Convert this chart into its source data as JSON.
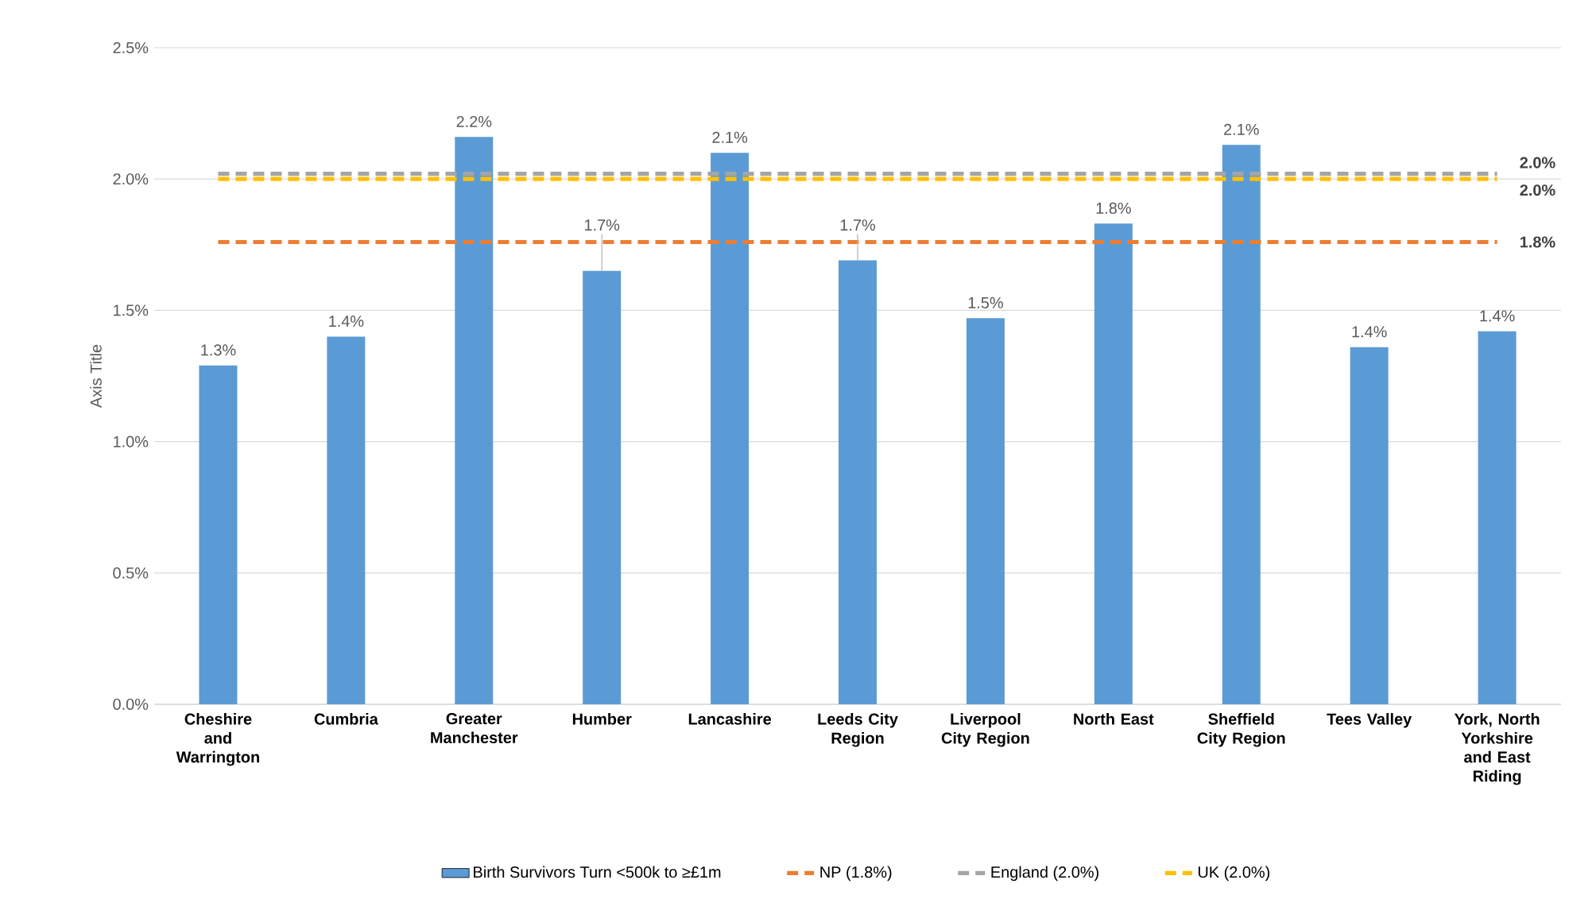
{
  "chart_data": {
    "type": "bar",
    "ylabel": "Axis Title",
    "categories": [
      "Cheshire and Warrington",
      "Cumbria",
      "Greater Manchester",
      "Humber",
      "Lancashire",
      "Leeds City Region",
      "Liverpool City Region",
      "North East",
      "Sheffield City Region",
      "Tees Valley",
      "York, North Yorkshire and East Riding"
    ],
    "series": [
      {
        "name": "Birth Survivors Turn <500k to ≥£1m",
        "color": "#5b9bd5",
        "values": [
          1.29,
          1.4,
          2.16,
          1.65,
          2.1,
          1.69,
          1.47,
          1.83,
          2.13,
          1.36,
          1.42
        ],
        "value_labels": [
          "1.3%",
          "1.4%",
          "2.2%",
          "1.7%",
          "2.1%",
          "1.7%",
          "1.5%",
          "1.8%",
          "2.1%",
          "1.4%",
          "1.4%"
        ]
      },
      {
        "name": "NP (1.8%)",
        "type": "line",
        "line_style": "dashed",
        "color": "#ed7d31",
        "values": [
          1.76,
          1.76,
          1.76,
          1.76,
          1.76,
          1.76,
          1.76,
          1.76,
          1.76,
          1.76,
          1.76
        ],
        "value_labels": [
          null,
          null,
          null,
          null,
          null,
          null,
          null,
          null,
          null,
          null,
          "1.8%"
        ]
      },
      {
        "name": "England (2.0%)",
        "type": "line",
        "line_style": "dashed",
        "color": "#a5a5a5",
        "values": [
          2.02,
          2.02,
          2.02,
          2.02,
          2.02,
          2.02,
          2.02,
          2.02,
          2.02,
          2.02,
          2.02
        ],
        "value_labels": [
          null,
          null,
          null,
          null,
          null,
          null,
          null,
          null,
          null,
          null,
          "2.0%"
        ]
      },
      {
        "name": "UK (2.0%)",
        "type": "line",
        "line_style": "dashed",
        "color": "#ffc000",
        "values": [
          2.0,
          2.0,
          2.0,
          2.0,
          2.0,
          2.0,
          2.0,
          2.0,
          2.0,
          2.0,
          2.0
        ],
        "value_labels": [
          null,
          null,
          null,
          null,
          null,
          null,
          null,
          null,
          null,
          null,
          "2.0%"
        ]
      }
    ],
    "ylim": [
      0,
      2.5
    ],
    "yticks": [
      {
        "value": 0,
        "label": "0.0%"
      },
      {
        "value": 0.5,
        "label": "0.5%"
      },
      {
        "value": 1.0,
        "label": "1.0%"
      },
      {
        "value": 1.5,
        "label": "1.5%"
      },
      {
        "value": 2.0,
        "label": "2.0%"
      },
      {
        "value": 2.5,
        "label": "2.5%"
      }
    ],
    "grid": "y",
    "legend": "bottom"
  }
}
